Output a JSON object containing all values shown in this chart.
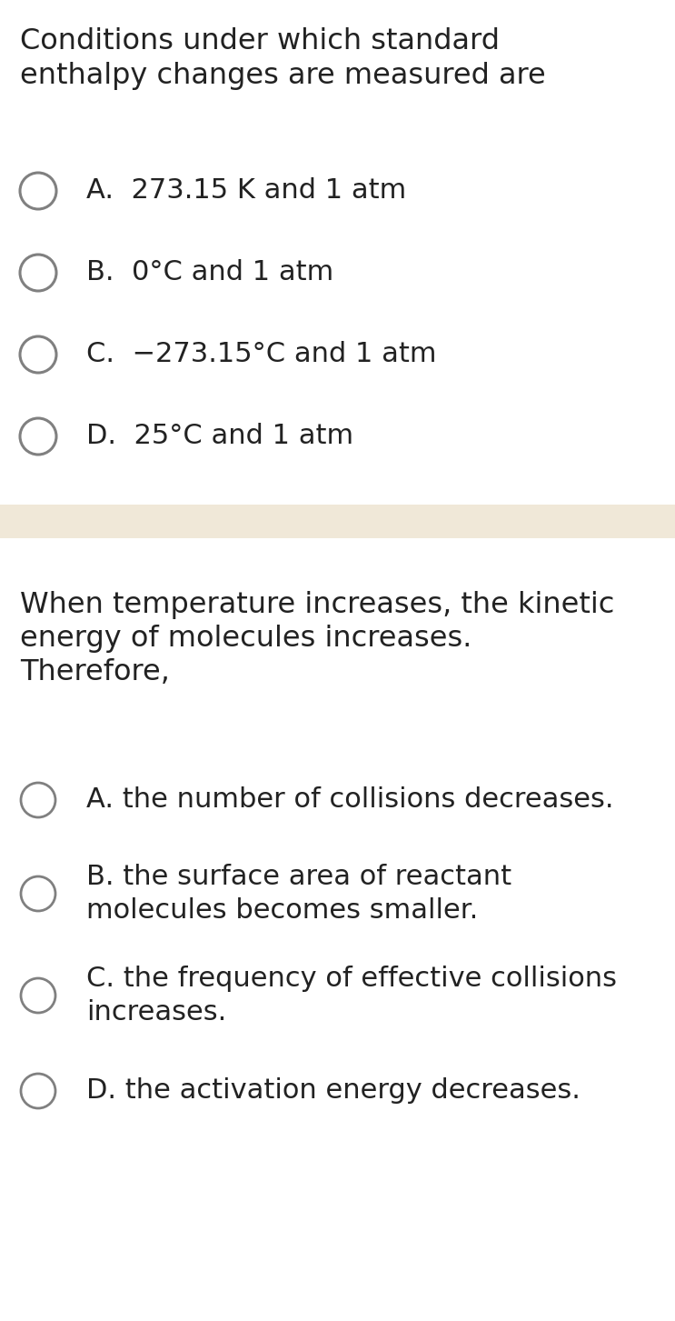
{
  "bg_color": "#ffffff",
  "divider_color": "#f0e8d8",
  "text_color": "#222222",
  "circle_edge_color": "#808080",
  "q1_title_line1": "Conditions under which standard",
  "q1_title_line2": "enthalpy changes are measured are",
  "q1_options": [
    "A.  273.15 K and 1 atm",
    "B.  0°C and 1 atm",
    "C.  −273.15°C and 1 atm",
    "D.  25°C and 1 atm"
  ],
  "q2_title_line1": "When temperature increases, the kinetic",
  "q2_title_line2": "energy of molecules increases.",
  "q2_title_line3": "Therefore,",
  "q2_options": [
    "A. the number of collisions decreases.",
    "B. the surface area of reactant\nmolecules becomes smaller.",
    "C. the frequency of effective collisions\nincreases.",
    "D. the activation energy decreases."
  ],
  "fig_width": 7.43,
  "fig_height": 14.53
}
